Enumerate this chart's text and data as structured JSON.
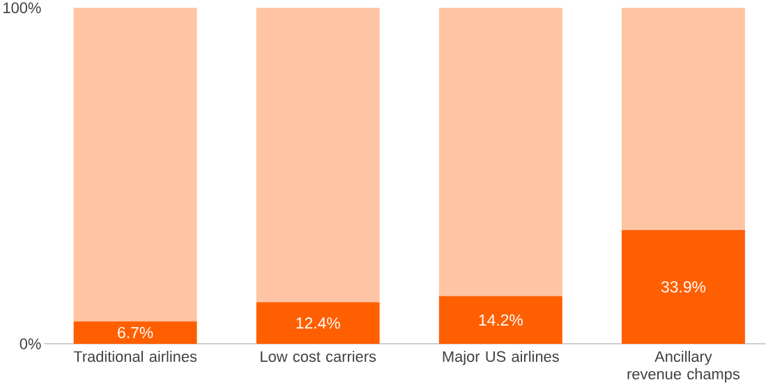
{
  "chart_data": {
    "type": "bar",
    "stacked": true,
    "categories": [
      "Traditional airlines",
      "Low cost carriers",
      "Major US airlines",
      "Ancillary revenue champs"
    ],
    "series": [
      {
        "color": "#ff5f00",
        "values": [
          6.7,
          12.4,
          14.2,
          33.9
        ],
        "value_labels": [
          "6.7%",
          "12.4%",
          "14.2%",
          "33.9%"
        ]
      },
      {
        "color": "#ffc4a3",
        "values": [
          93.3,
          87.6,
          85.8,
          66.1
        ]
      }
    ],
    "ylim": [
      0,
      100
    ],
    "yticks": [
      {
        "value": 0,
        "label": "0%"
      },
      {
        "value": 100,
        "label": "100%"
      }
    ],
    "grid": false
  }
}
